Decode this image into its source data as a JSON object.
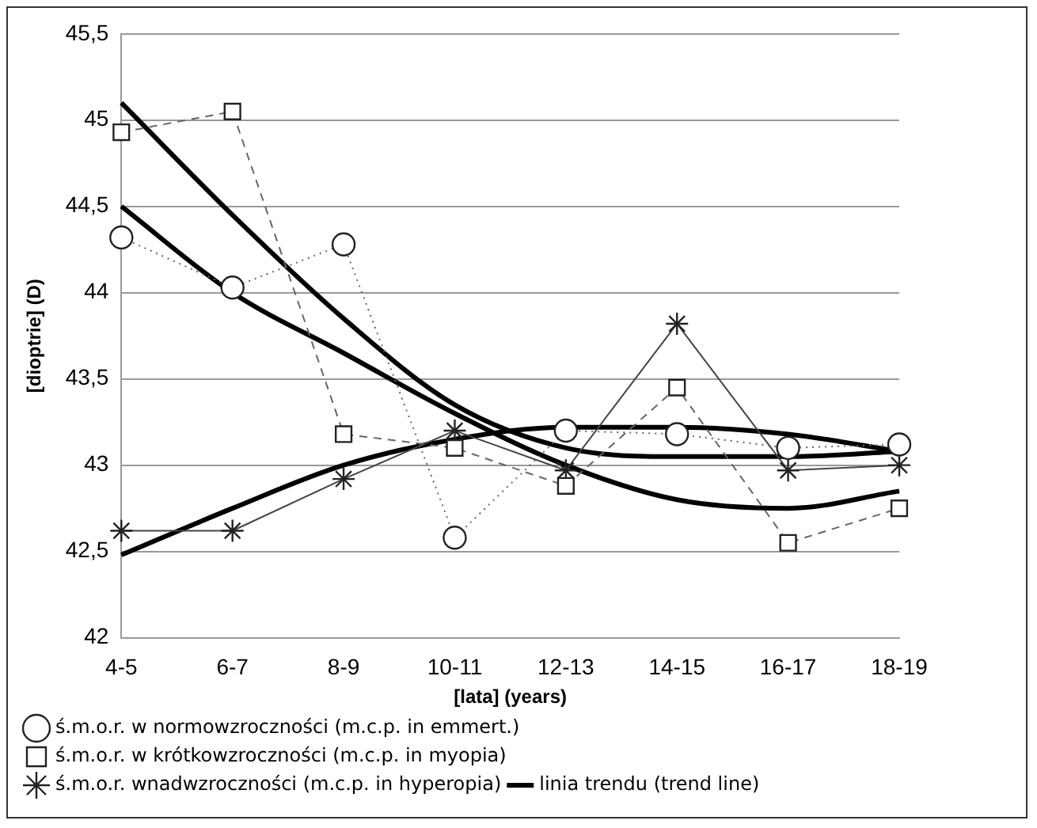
{
  "chart_data": {
    "type": "line",
    "xlabel": "[lata] (years)",
    "ylabel": "[dioptrie] (D)",
    "categories": [
      "4-5",
      "6-7",
      "8-9",
      "10-11",
      "12-13",
      "14-15",
      "16-17",
      "18-19"
    ],
    "ylim": [
      42,
      45.5
    ],
    "yticks": [
      42,
      {
        "value": 42.5,
        "label": "42,5"
      },
      43,
      {
        "value": 43.5,
        "label": "43,5"
      },
      44,
      {
        "value": 44.5,
        "label": "44,5"
      },
      45,
      {
        "value": 45.5,
        "label": "45,5"
      }
    ],
    "grid": "y",
    "legend": "bottom",
    "series": [
      {
        "name": "ś.m.o.r. w normowzroczności (m.c.p. in emmert.)",
        "color": "#666666",
        "marker": "circle",
        "line_style": "dotted",
        "values": [
          44.32,
          44.03,
          44.28,
          42.58,
          43.2,
          43.18,
          43.1,
          43.12
        ]
      },
      {
        "name": "ś.m.o.r. w krótkowzroczności (m.c.p. in myopia)",
        "color": "#666666",
        "marker": "square",
        "line_style": "dashed",
        "values": [
          44.93,
          45.05,
          43.18,
          43.1,
          42.88,
          43.45,
          42.55,
          42.75
        ]
      },
      {
        "name": "ś.m.o.r. wnadwzroczności (m.c.p. in hyperopia)",
        "color": "#444444",
        "marker": "cross",
        "line_style": "solid",
        "values": [
          42.62,
          42.62,
          42.92,
          43.2,
          42.97,
          43.82,
          42.97,
          43.0
        ]
      },
      {
        "name": "linia trendu (trend line)",
        "color": "#000000",
        "marker": "none",
        "line_style": "solid",
        "values": [
          45.1,
          44.45,
          43.85,
          43.35,
          43.1,
          43.05,
          43.05,
          43.08
        ]
      },
      {
        "color": "#000000",
        "marker": "none",
        "line_style": "solid",
        "values": [
          44.5,
          44.0,
          43.65,
          43.3,
          43.0,
          42.8,
          42.75,
          42.85
        ]
      },
      {
        "color": "#000000",
        "marker": "none",
        "line_style": "solid",
        "values": [
          42.48,
          42.75,
          43.0,
          43.15,
          43.22,
          43.22,
          43.18,
          43.08
        ]
      }
    ]
  }
}
